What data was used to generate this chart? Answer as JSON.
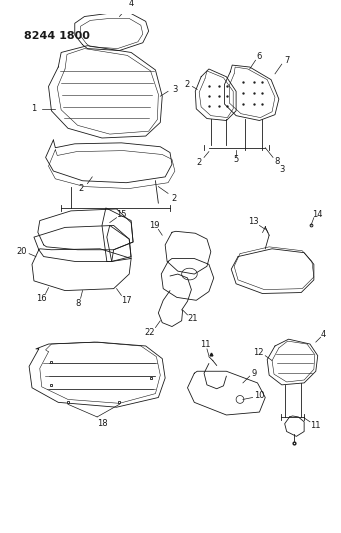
{
  "title": "8244 1800",
  "bg_color": "#ffffff",
  "line_color": "#1a1a1a",
  "fig_width": 3.41,
  "fig_height": 5.33,
  "dpi": 100,
  "title_fontsize": 7.5,
  "label_fontsize": 6.0
}
